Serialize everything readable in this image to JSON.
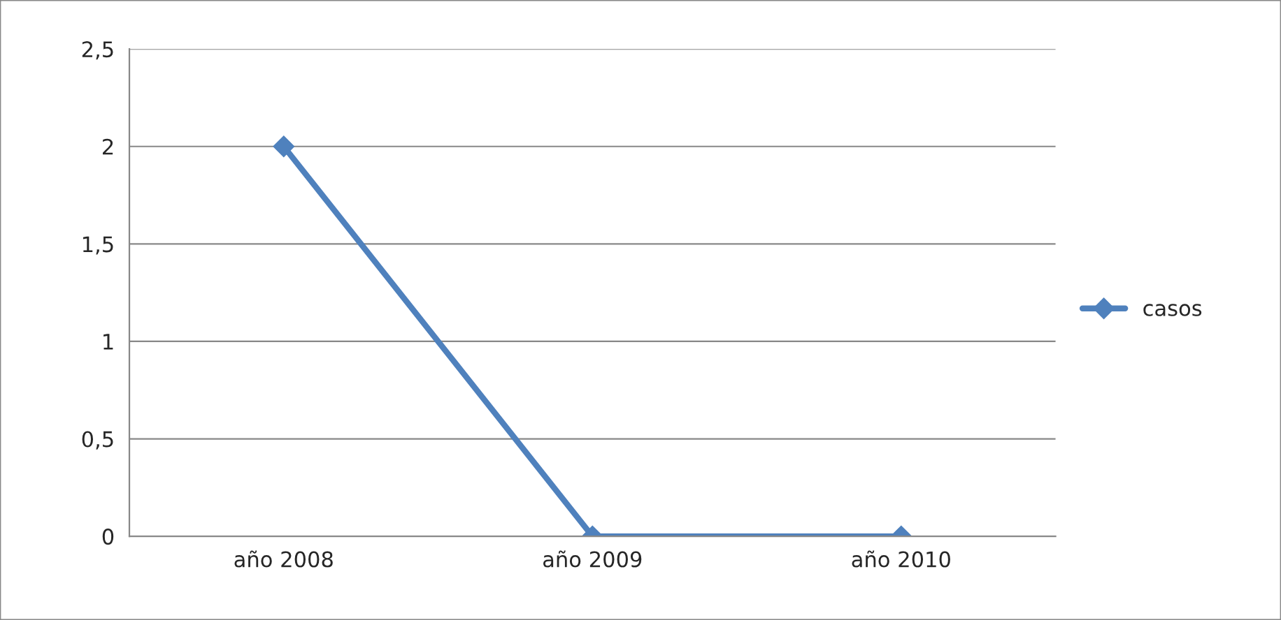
{
  "chart_data": {
    "type": "line",
    "categories": [
      "año 2008",
      "año 2009",
      "año 2010"
    ],
    "series": [
      {
        "name": "casos",
        "color": "#4f81bd",
        "values": [
          2,
          0,
          0
        ]
      }
    ],
    "ylim": [
      0,
      2.5
    ],
    "yticks": [
      0,
      {
        "value": 0.5,
        "label": "0,5"
      },
      1,
      {
        "value": 1.5,
        "label": "1,5"
      },
      2,
      {
        "value": 2.5,
        "label": "2,5"
      }
    ],
    "grid": "y",
    "legend": "right",
    "marker": "diamond",
    "line_style": "solid"
  }
}
